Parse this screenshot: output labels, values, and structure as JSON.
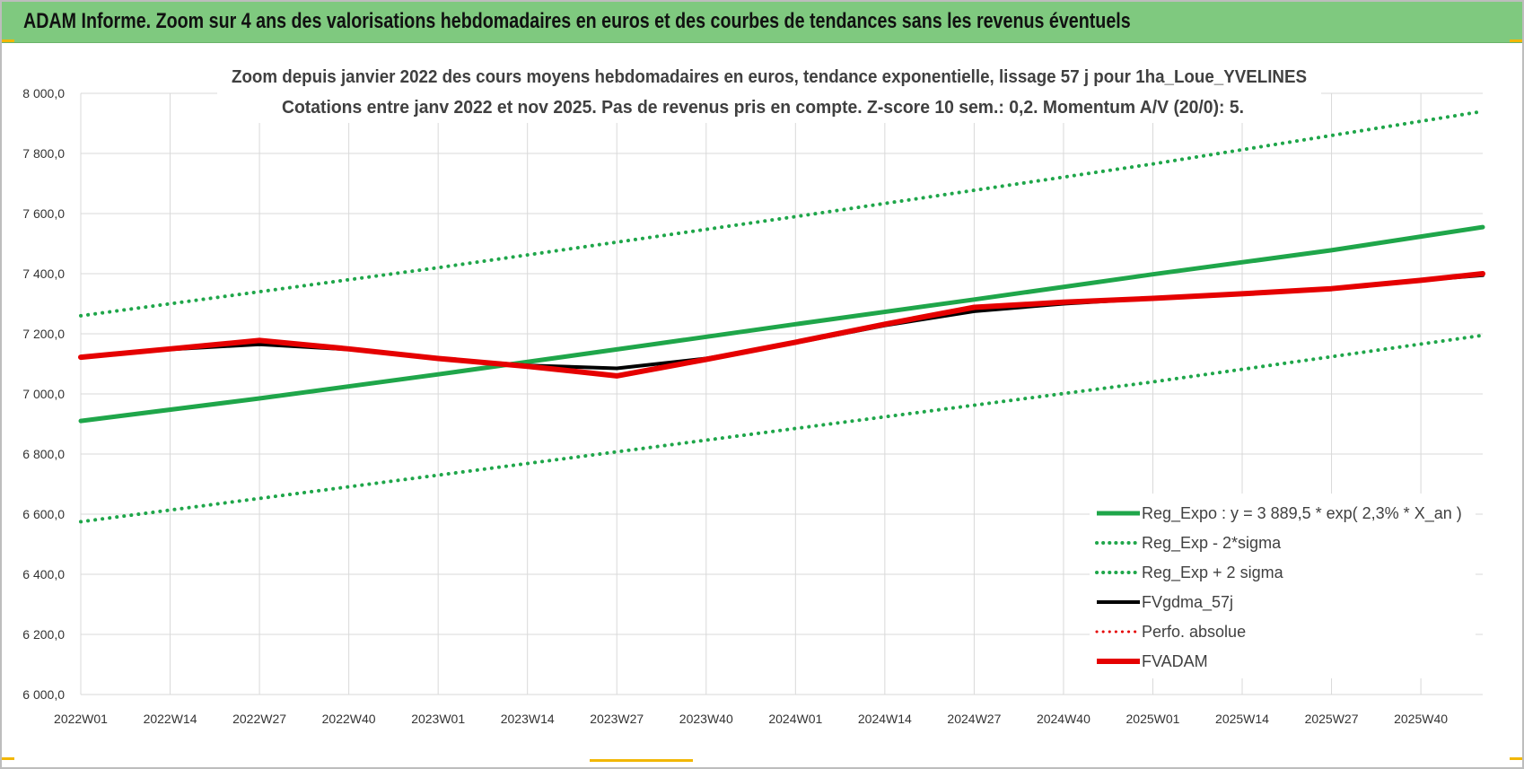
{
  "banner": {
    "title": "ADAM Informe. Zoom sur 4 ans des valorisations hebdomadaires en euros et des courbes de tendances sans les revenus éventuels"
  },
  "chart_data": {
    "type": "line",
    "title": "Zoom depuis janvier 2022 des cours moyens hebdomadaires en euros, tendance exponentielle, lissage 57 j pour 1ha_Loue_YVELINES",
    "subtitle": "Cotations entre janv 2022 et nov 2025. Pas de revenus pris en compte. Z-score 10 sem.: 0,2. Momentum A/V (20/0): 5.",
    "xlabel": "",
    "ylabel": "",
    "ylim": [
      6000,
      8000
    ],
    "yticks": [
      6000,
      6200,
      6400,
      6600,
      6800,
      7000,
      7200,
      7400,
      7600,
      7800,
      8000
    ],
    "ytick_labels": [
      "6 000,0",
      "6 200,0",
      "6 400,0",
      "6 600,0",
      "6 800,0",
      "7 000,0",
      "7 200,0",
      "7 400,0",
      "7 600,0",
      "7 800,0",
      "8 000,0"
    ],
    "x_count": 205,
    "xticks": [
      0,
      13,
      26,
      39,
      52,
      65,
      78,
      91,
      104,
      117,
      130,
      143,
      156,
      169,
      182,
      195
    ],
    "xtick_labels": [
      "2022W01",
      "2022W14",
      "2022W27",
      "2022W40",
      "2023W01",
      "2023W14",
      "2023W27",
      "2023W40",
      "2024W01",
      "2024W14",
      "2024W27",
      "2024W40",
      "2025W01",
      "2025W14",
      "2025W27",
      "2025W40"
    ],
    "grid": true,
    "legend_position": "bottom-right",
    "series": [
      {
        "name": "Reg_Expo : y = 3 889,5 * exp( 2,3% *  X_an )",
        "color": "#1fa64a",
        "style": "solid",
        "width": 5,
        "points": [
          [
            0,
            6910
          ],
          [
            26,
            6985
          ],
          [
            52,
            7065
          ],
          [
            78,
            7148
          ],
          [
            104,
            7232
          ],
          [
            130,
            7314
          ],
          [
            156,
            7398
          ],
          [
            182,
            7478
          ],
          [
            204,
            7555
          ]
        ]
      },
      {
        "name": "Reg_Exp - 2*sigma",
        "color": "#1fa64a",
        "style": "dotted",
        "width": 4,
        "points": [
          [
            0,
            6575
          ],
          [
            52,
            6730
          ],
          [
            104,
            6885
          ],
          [
            156,
            7040
          ],
          [
            204,
            7195
          ]
        ]
      },
      {
        "name": "Reg_Exp + 2 sigma",
        "color": "#1fa64a",
        "style": "dotted",
        "width": 4,
        "points": [
          [
            0,
            7260
          ],
          [
            52,
            7420
          ],
          [
            104,
            7590
          ],
          [
            156,
            7765
          ],
          [
            204,
            7940
          ]
        ]
      },
      {
        "name": "FVgdma_57j",
        "color": "#000000",
        "style": "solid",
        "width": 4,
        "points": [
          [
            0,
            7122
          ],
          [
            13,
            7148
          ],
          [
            26,
            7165
          ],
          [
            39,
            7148
          ],
          [
            52,
            7118
          ],
          [
            65,
            7095
          ],
          [
            78,
            7085
          ],
          [
            91,
            7118
          ],
          [
            104,
            7170
          ],
          [
            117,
            7228
          ],
          [
            130,
            7275
          ],
          [
            143,
            7300
          ],
          [
            156,
            7318
          ],
          [
            169,
            7332
          ],
          [
            182,
            7350
          ],
          [
            195,
            7378
          ],
          [
            204,
            7395
          ]
        ]
      },
      {
        "name": "Perfo. absolue",
        "color": "#e50000",
        "style": "dotted",
        "width": 3,
        "points": []
      },
      {
        "name": "FVADAM",
        "color": "#e50000",
        "style": "solid",
        "width": 6,
        "points": [
          [
            0,
            7122
          ],
          [
            13,
            7150
          ],
          [
            26,
            7178
          ],
          [
            39,
            7150
          ],
          [
            52,
            7118
          ],
          [
            65,
            7092
          ],
          [
            78,
            7060
          ],
          [
            91,
            7115
          ],
          [
            104,
            7172
          ],
          [
            117,
            7232
          ],
          [
            130,
            7288
          ],
          [
            143,
            7305
          ],
          [
            156,
            7318
          ],
          [
            169,
            7333
          ],
          [
            182,
            7350
          ],
          [
            195,
            7378
          ],
          [
            204,
            7400
          ]
        ]
      }
    ]
  }
}
